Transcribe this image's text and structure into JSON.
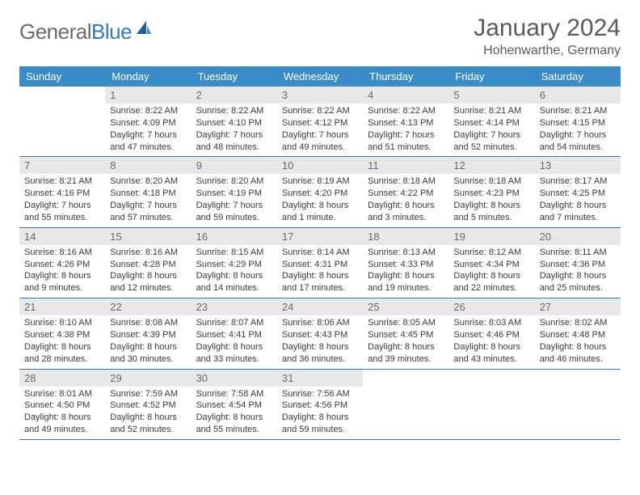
{
  "brand": {
    "part1": "General",
    "part2": "Blue"
  },
  "title": "January 2024",
  "location": "Hohenwarthe, Germany",
  "colors": {
    "header_bg": "#3a8cc9",
    "divider": "#2f7bbf",
    "daynum_bg": "#e8e8e8",
    "text": "#3a3a3a",
    "muted": "#6a6a6a"
  },
  "weekdays": [
    "Sunday",
    "Monday",
    "Tuesday",
    "Wednesday",
    "Thursday",
    "Friday",
    "Saturday"
  ],
  "weeks": [
    [
      {
        "n": "",
        "sunrise": "",
        "sunset": "",
        "daylight": ""
      },
      {
        "n": "1",
        "sunrise": "Sunrise: 8:22 AM",
        "sunset": "Sunset: 4:09 PM",
        "daylight": "Daylight: 7 hours and 47 minutes."
      },
      {
        "n": "2",
        "sunrise": "Sunrise: 8:22 AM",
        "sunset": "Sunset: 4:10 PM",
        "daylight": "Daylight: 7 hours and 48 minutes."
      },
      {
        "n": "3",
        "sunrise": "Sunrise: 8:22 AM",
        "sunset": "Sunset: 4:12 PM",
        "daylight": "Daylight: 7 hours and 49 minutes."
      },
      {
        "n": "4",
        "sunrise": "Sunrise: 8:22 AM",
        "sunset": "Sunset: 4:13 PM",
        "daylight": "Daylight: 7 hours and 51 minutes."
      },
      {
        "n": "5",
        "sunrise": "Sunrise: 8:21 AM",
        "sunset": "Sunset: 4:14 PM",
        "daylight": "Daylight: 7 hours and 52 minutes."
      },
      {
        "n": "6",
        "sunrise": "Sunrise: 8:21 AM",
        "sunset": "Sunset: 4:15 PM",
        "daylight": "Daylight: 7 hours and 54 minutes."
      }
    ],
    [
      {
        "n": "7",
        "sunrise": "Sunrise: 8:21 AM",
        "sunset": "Sunset: 4:16 PM",
        "daylight": "Daylight: 7 hours and 55 minutes."
      },
      {
        "n": "8",
        "sunrise": "Sunrise: 8:20 AM",
        "sunset": "Sunset: 4:18 PM",
        "daylight": "Daylight: 7 hours and 57 minutes."
      },
      {
        "n": "9",
        "sunrise": "Sunrise: 8:20 AM",
        "sunset": "Sunset: 4:19 PM",
        "daylight": "Daylight: 7 hours and 59 minutes."
      },
      {
        "n": "10",
        "sunrise": "Sunrise: 8:19 AM",
        "sunset": "Sunset: 4:20 PM",
        "daylight": "Daylight: 8 hours and 1 minute."
      },
      {
        "n": "11",
        "sunrise": "Sunrise: 8:18 AM",
        "sunset": "Sunset: 4:22 PM",
        "daylight": "Daylight: 8 hours and 3 minutes."
      },
      {
        "n": "12",
        "sunrise": "Sunrise: 8:18 AM",
        "sunset": "Sunset: 4:23 PM",
        "daylight": "Daylight: 8 hours and 5 minutes."
      },
      {
        "n": "13",
        "sunrise": "Sunrise: 8:17 AM",
        "sunset": "Sunset: 4:25 PM",
        "daylight": "Daylight: 8 hours and 7 minutes."
      }
    ],
    [
      {
        "n": "14",
        "sunrise": "Sunrise: 8:16 AM",
        "sunset": "Sunset: 4:26 PM",
        "daylight": "Daylight: 8 hours and 9 minutes."
      },
      {
        "n": "15",
        "sunrise": "Sunrise: 8:16 AM",
        "sunset": "Sunset: 4:28 PM",
        "daylight": "Daylight: 8 hours and 12 minutes."
      },
      {
        "n": "16",
        "sunrise": "Sunrise: 8:15 AM",
        "sunset": "Sunset: 4:29 PM",
        "daylight": "Daylight: 8 hours and 14 minutes."
      },
      {
        "n": "17",
        "sunrise": "Sunrise: 8:14 AM",
        "sunset": "Sunset: 4:31 PM",
        "daylight": "Daylight: 8 hours and 17 minutes."
      },
      {
        "n": "18",
        "sunrise": "Sunrise: 8:13 AM",
        "sunset": "Sunset: 4:33 PM",
        "daylight": "Daylight: 8 hours and 19 minutes."
      },
      {
        "n": "19",
        "sunrise": "Sunrise: 8:12 AM",
        "sunset": "Sunset: 4:34 PM",
        "daylight": "Daylight: 8 hours and 22 minutes."
      },
      {
        "n": "20",
        "sunrise": "Sunrise: 8:11 AM",
        "sunset": "Sunset: 4:36 PM",
        "daylight": "Daylight: 8 hours and 25 minutes."
      }
    ],
    [
      {
        "n": "21",
        "sunrise": "Sunrise: 8:10 AM",
        "sunset": "Sunset: 4:38 PM",
        "daylight": "Daylight: 8 hours and 28 minutes."
      },
      {
        "n": "22",
        "sunrise": "Sunrise: 8:08 AM",
        "sunset": "Sunset: 4:39 PM",
        "daylight": "Daylight: 8 hours and 30 minutes."
      },
      {
        "n": "23",
        "sunrise": "Sunrise: 8:07 AM",
        "sunset": "Sunset: 4:41 PM",
        "daylight": "Daylight: 8 hours and 33 minutes."
      },
      {
        "n": "24",
        "sunrise": "Sunrise: 8:06 AM",
        "sunset": "Sunset: 4:43 PM",
        "daylight": "Daylight: 8 hours and 36 minutes."
      },
      {
        "n": "25",
        "sunrise": "Sunrise: 8:05 AM",
        "sunset": "Sunset: 4:45 PM",
        "daylight": "Daylight: 8 hours and 39 minutes."
      },
      {
        "n": "26",
        "sunrise": "Sunrise: 8:03 AM",
        "sunset": "Sunset: 4:46 PM",
        "daylight": "Daylight: 8 hours and 43 minutes."
      },
      {
        "n": "27",
        "sunrise": "Sunrise: 8:02 AM",
        "sunset": "Sunset: 4:48 PM",
        "daylight": "Daylight: 8 hours and 46 minutes."
      }
    ],
    [
      {
        "n": "28",
        "sunrise": "Sunrise: 8:01 AM",
        "sunset": "Sunset: 4:50 PM",
        "daylight": "Daylight: 8 hours and 49 minutes."
      },
      {
        "n": "29",
        "sunrise": "Sunrise: 7:59 AM",
        "sunset": "Sunset: 4:52 PM",
        "daylight": "Daylight: 8 hours and 52 minutes."
      },
      {
        "n": "30",
        "sunrise": "Sunrise: 7:58 AM",
        "sunset": "Sunset: 4:54 PM",
        "daylight": "Daylight: 8 hours and 55 minutes."
      },
      {
        "n": "31",
        "sunrise": "Sunrise: 7:56 AM",
        "sunset": "Sunset: 4:56 PM",
        "daylight": "Daylight: 8 hours and 59 minutes."
      },
      {
        "n": "",
        "sunrise": "",
        "sunset": "",
        "daylight": ""
      },
      {
        "n": "",
        "sunrise": "",
        "sunset": "",
        "daylight": ""
      },
      {
        "n": "",
        "sunrise": "",
        "sunset": "",
        "daylight": ""
      }
    ]
  ]
}
